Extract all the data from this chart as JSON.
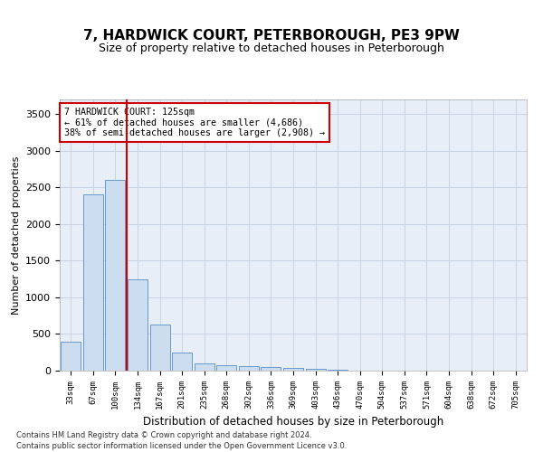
{
  "title": "7, HARDWICK COURT, PETERBOROUGH, PE3 9PW",
  "subtitle": "Size of property relative to detached houses in Peterborough",
  "xlabel": "Distribution of detached houses by size in Peterborough",
  "ylabel": "Number of detached properties",
  "footer_line1": "Contains HM Land Registry data © Crown copyright and database right 2024.",
  "footer_line2": "Contains public sector information licensed under the Open Government Licence v3.0.",
  "bar_color": "#ccddf0",
  "bar_edge_color": "#6699cc",
  "grid_color": "#c8d4e4",
  "background_color": "#e8eef8",
  "annotation_box_color": "#ffffff",
  "annotation_border_color": "#cc0000",
  "vline_color": "#cc0000",
  "annotation_text_line1": "7 HARDWICK COURT: 125sqm",
  "annotation_text_line2": "← 61% of detached houses are smaller (4,686)",
  "annotation_text_line3": "38% of semi-detached houses are larger (2,908) →",
  "categories": [
    "33sqm",
    "67sqm",
    "100sqm",
    "134sqm",
    "167sqm",
    "201sqm",
    "235sqm",
    "268sqm",
    "302sqm",
    "336sqm",
    "369sqm",
    "403sqm",
    "436sqm",
    "470sqm",
    "504sqm",
    "537sqm",
    "571sqm",
    "604sqm",
    "638sqm",
    "672sqm",
    "705sqm"
  ],
  "values": [
    390,
    2400,
    2600,
    1250,
    630,
    250,
    100,
    75,
    65,
    55,
    35,
    25,
    15,
    5,
    5,
    5,
    0,
    0,
    0,
    0,
    0
  ],
  "ylim": [
    0,
    3700
  ],
  "yticks": [
    0,
    500,
    1000,
    1500,
    2000,
    2500,
    3000,
    3500
  ]
}
